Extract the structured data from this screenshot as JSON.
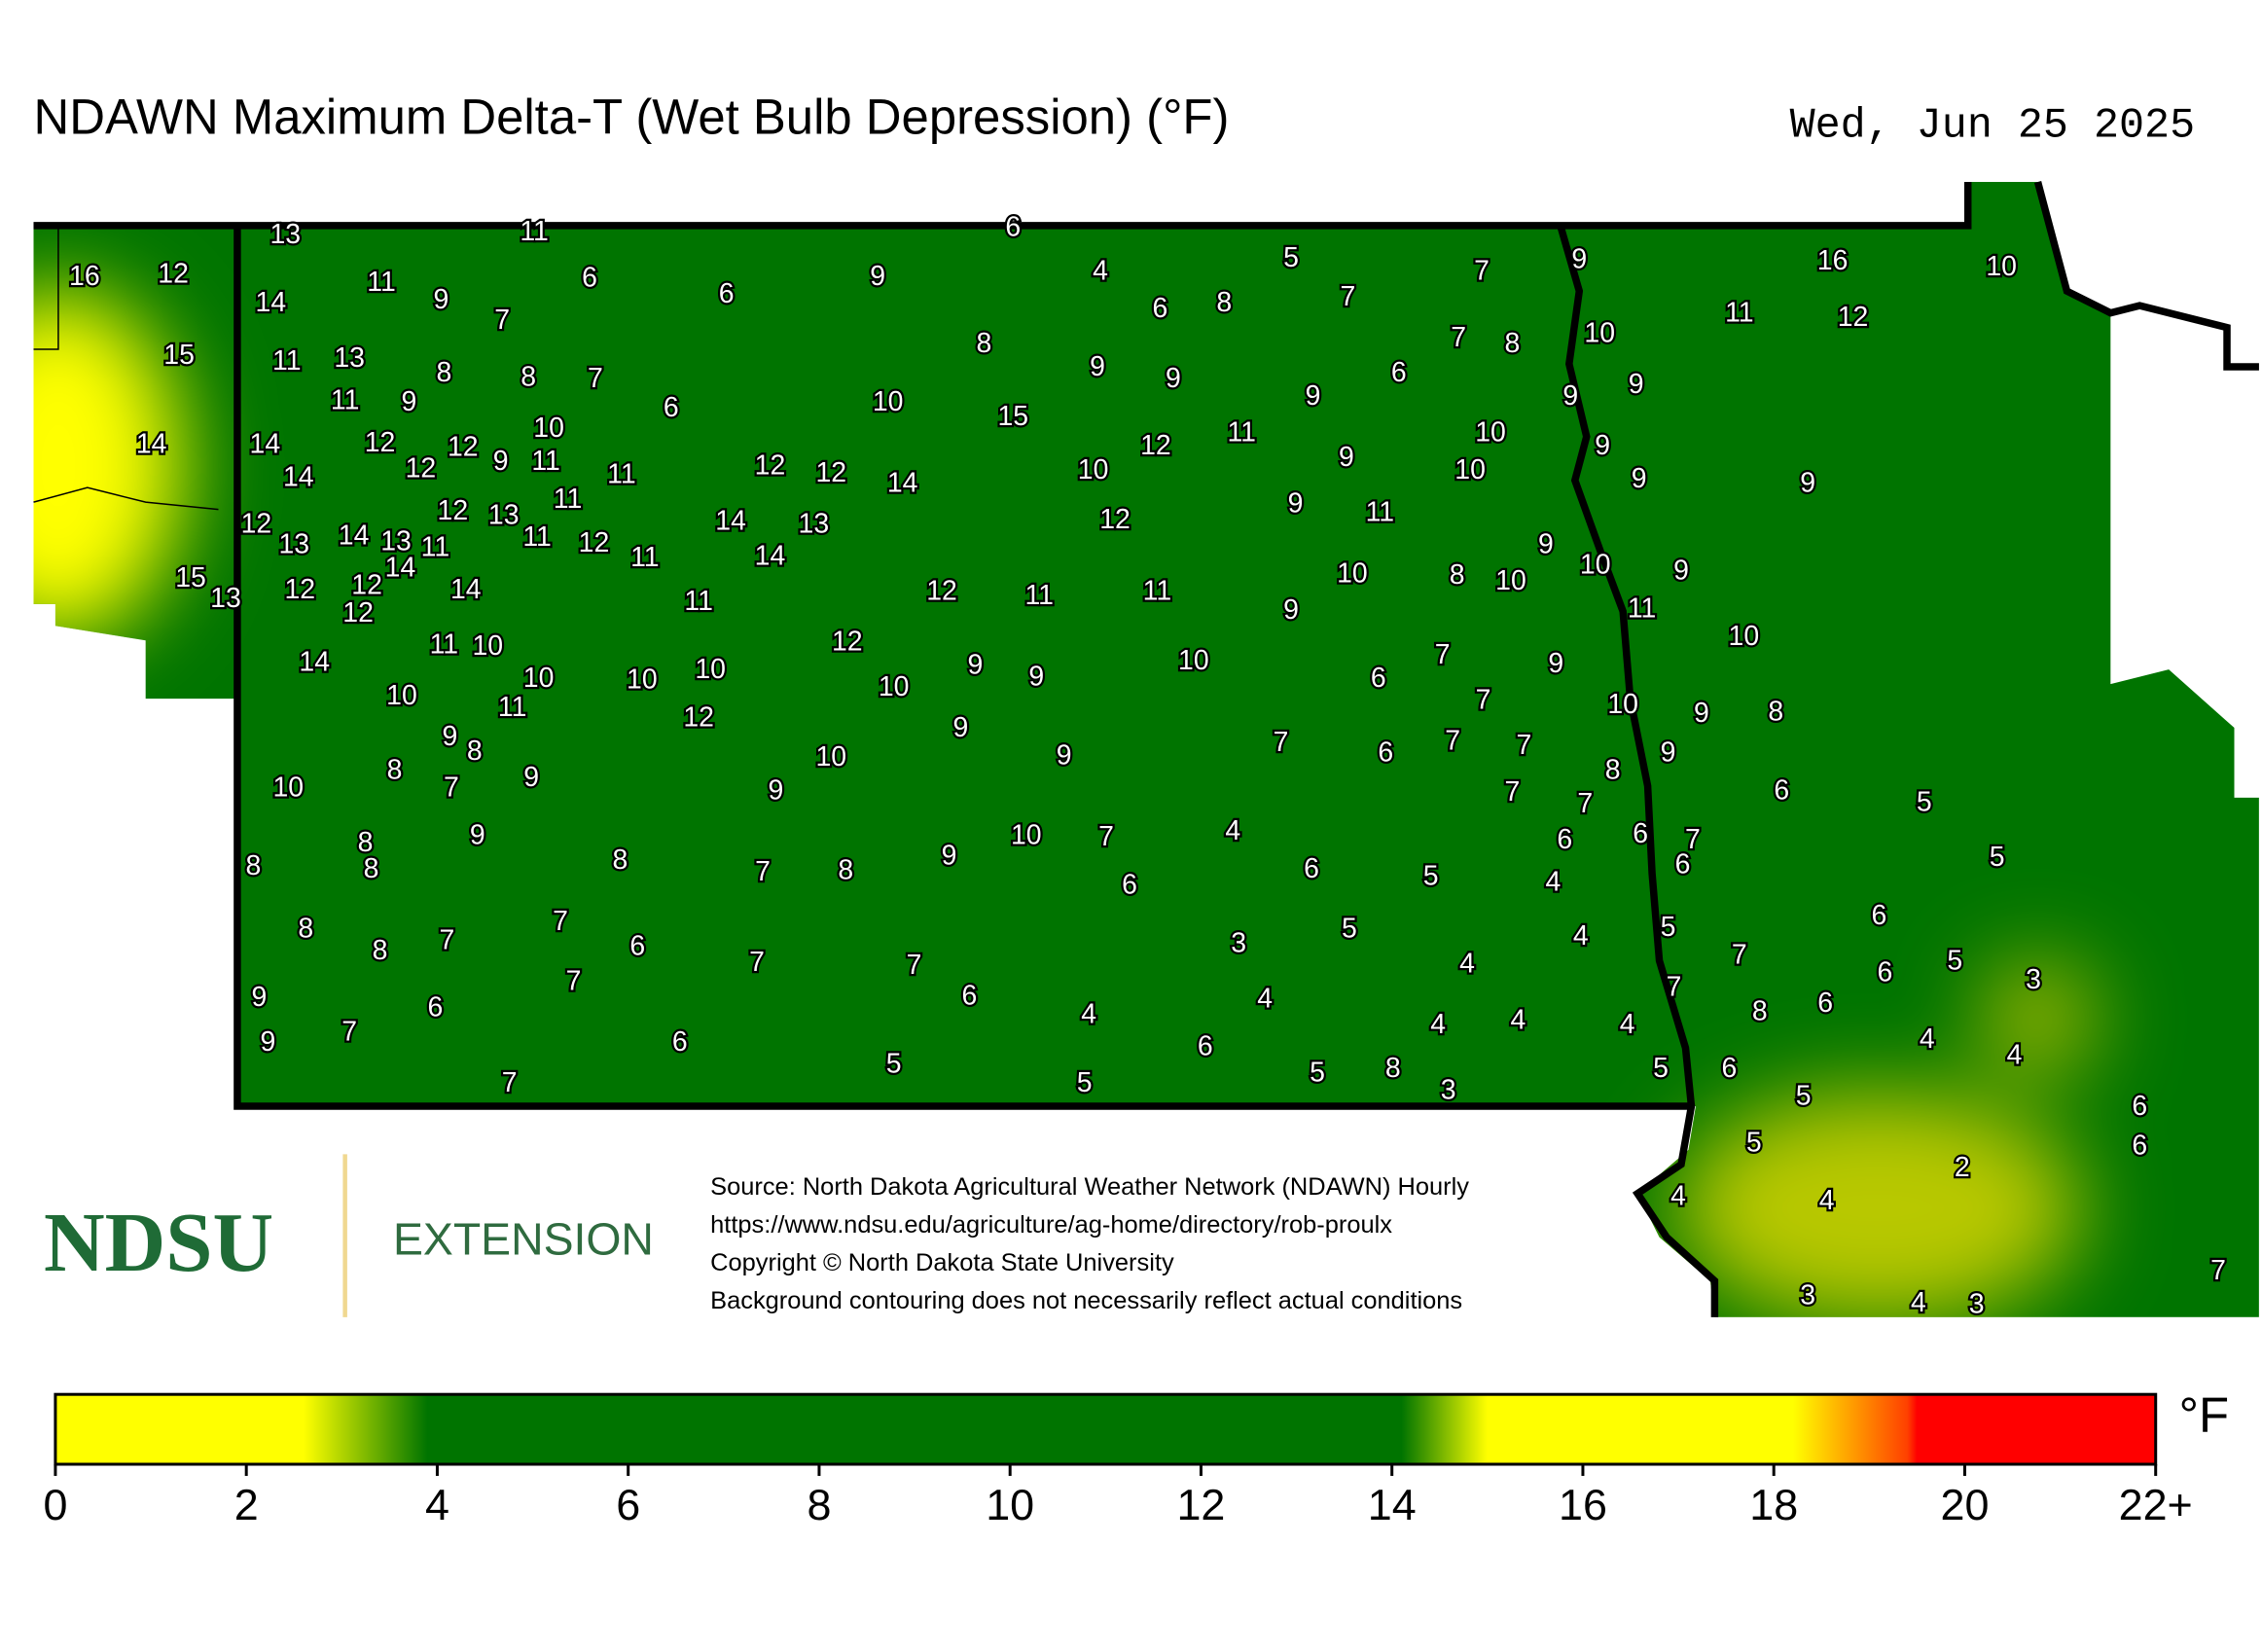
{
  "title": "NDAWN Maximum Delta-T (Wet Bulb Depression) (°F)",
  "date": "Wed, Jun 25 2025",
  "stations": {
    "values": [
      13,
      11,
      6,
      16,
      12,
      11,
      9,
      14,
      7,
      6,
      6,
      9,
      4,
      6,
      8,
      5,
      7,
      7,
      9,
      16,
      10,
      11,
      12,
      15,
      11,
      13,
      8,
      8,
      7,
      11,
      9,
      6,
      10,
      8,
      9,
      9,
      7,
      8,
      10,
      6,
      9,
      9,
      9,
      15,
      10,
      14,
      14,
      12,
      12,
      12,
      9,
      11,
      14,
      11,
      12,
      12,
      14,
      10,
      12,
      11,
      9,
      10,
      9,
      10,
      9,
      9,
      12,
      13,
      14,
      13,
      11,
      14,
      12,
      13,
      11,
      11,
      12,
      11,
      14,
      13,
      14,
      12,
      9,
      11,
      9,
      15,
      13,
      12,
      12,
      12,
      14,
      11,
      12,
      11,
      11,
      9,
      10,
      8,
      10,
      10,
      9,
      11,
      10,
      14,
      11,
      10,
      12,
      10,
      10,
      10,
      10,
      9,
      9,
      10,
      6,
      7,
      9,
      10,
      11,
      12,
      7,
      10,
      9,
      8,
      9,
      8,
      8,
      9,
      7,
      10,
      10,
      9,
      9,
      9,
      7,
      6,
      7,
      7,
      8,
      9,
      7,
      7,
      6,
      5,
      9,
      8,
      8,
      8,
      8,
      7,
      8,
      9,
      10,
      7,
      6,
      4,
      6,
      5,
      6,
      6,
      7,
      6,
      4,
      5,
      8,
      8,
      7,
      7,
      6,
      7,
      7,
      3,
      5,
      4,
      4,
      5,
      7,
      6,
      6,
      5,
      3,
      9,
      7,
      6,
      6,
      4,
      4,
      7,
      8,
      6,
      9,
      7,
      6,
      6,
      4,
      4,
      4,
      4,
      4,
      7,
      5,
      5,
      5,
      8,
      3,
      5,
      6,
      5,
      6,
      6,
      5,
      2,
      4,
      4,
      7,
      3,
      4,
      3
    ]
  },
  "source": [
    "Source: North Dakota Agricultural Weather Network (NDAWN) Hourly",
    "https://www.ndsu.edu/agriculture/ag-home/directory/rob-proulx",
    "Copyright © North Dakota State University",
    "Background contouring does not necessarily reflect actual conditions"
  ],
  "logo": {
    "name": "NDSU",
    "unit": "EXTENSION"
  },
  "colorbar": {
    "unit": "°F",
    "range": [
      0,
      22
    ],
    "ticks": [
      0,
      2,
      4,
      6,
      8,
      10,
      12,
      14,
      16,
      18,
      20,
      {
        "value": 22,
        "label": "22+"
      }
    ],
    "colorscale": [
      [
        0,
        "#ffff00"
      ],
      [
        2.6,
        "#ffff00"
      ],
      [
        3.9,
        "#007400"
      ],
      [
        14.1,
        "#007400"
      ],
      [
        15,
        "#ffff00"
      ],
      [
        18.2,
        "#ffff00"
      ],
      [
        19.4,
        "#ff4000"
      ],
      [
        19.5,
        "#ff0000"
      ],
      [
        22,
        "#ff0000"
      ]
    ]
  }
}
